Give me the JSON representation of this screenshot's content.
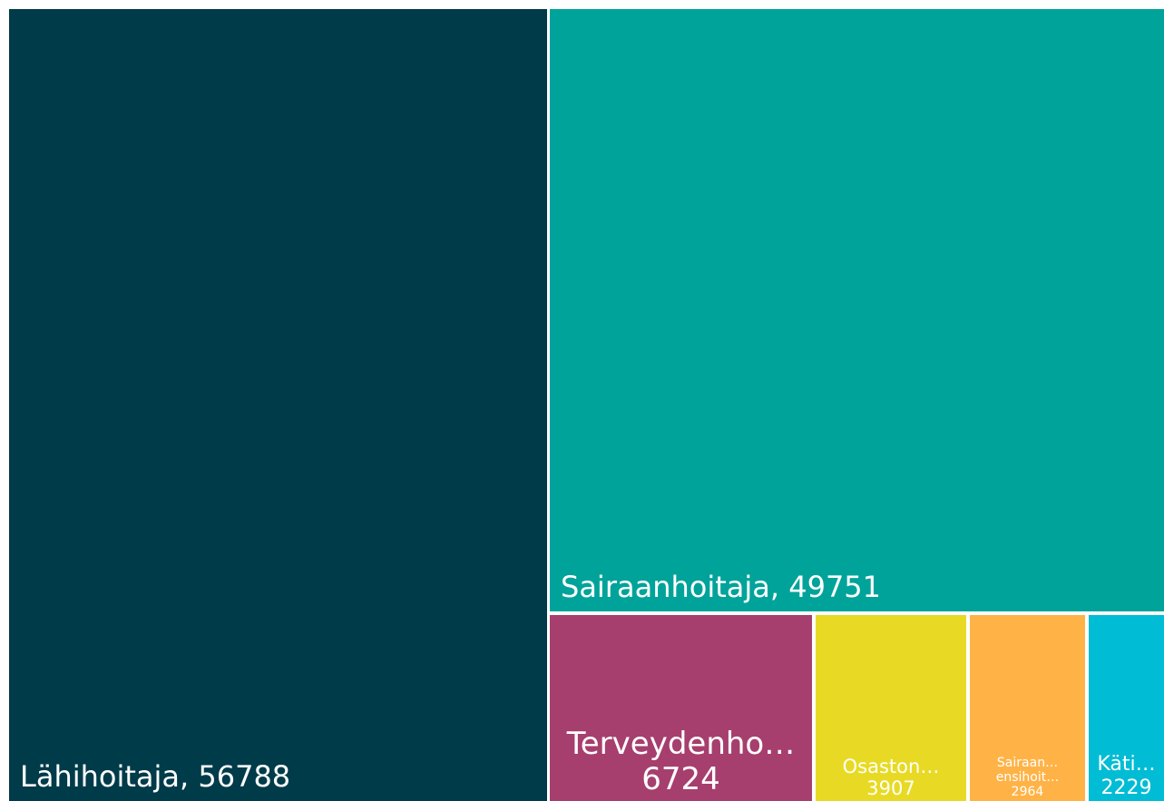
{
  "chart_data": {
    "type": "treemap",
    "categories": [
      "Lähihoitaja",
      "Sairaanhoitaja",
      "Terveydenho…",
      "Osaston…",
      "Sairaan… ensihoit…",
      "Käti…"
    ],
    "values": [
      56788,
      49751,
      6724,
      3907,
      2964,
      2229
    ],
    "colors": [
      "#003b4a",
      "#00a39a",
      "#a63f6e",
      "#e8da24",
      "#ffb347",
      "#00bcd4"
    ]
  }
}
